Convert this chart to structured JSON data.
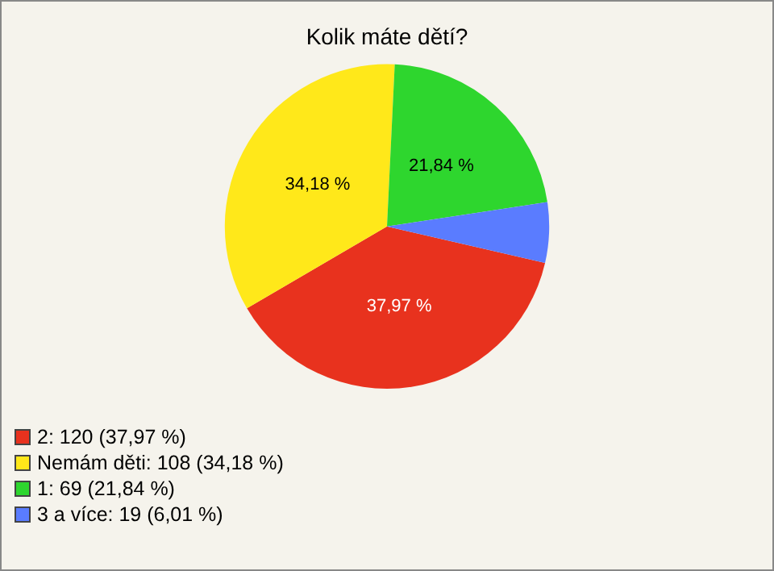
{
  "chart_data": {
    "type": "pie",
    "title": "Kolik máte dětí?",
    "categories": [
      "2: 120 (37,97 %)",
      "Nemám děti: 108 (34,18 %)",
      "1: 69 (21,84 %)",
      "3 a více: 19 (6,01 %)"
    ],
    "values": [
      37.97,
      34.18,
      21.84,
      6.01
    ],
    "colors": [
      "#e8321e",
      "#ffe81a",
      "#2ed62e",
      "#5a7cff"
    ],
    "value_labels": [
      "37,97 %",
      "34,18 %",
      "21,84 %",
      null
    ],
    "legend": "bottom left"
  }
}
